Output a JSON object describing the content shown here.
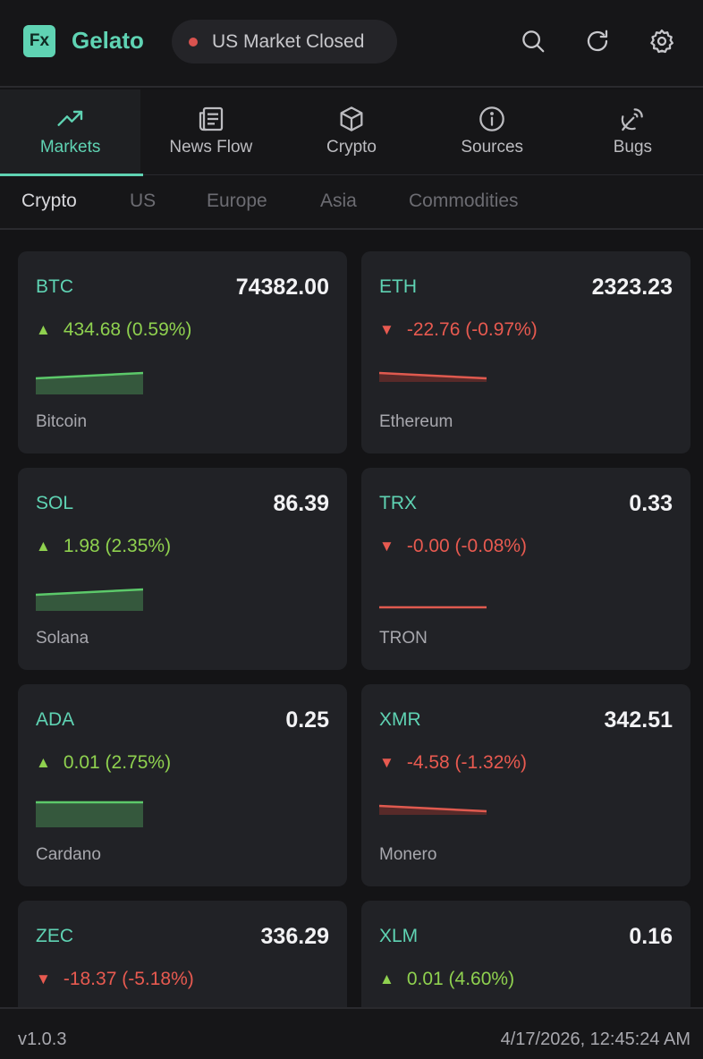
{
  "header": {
    "logo_text": "Fx",
    "app_title": "Gelato",
    "market_status": "US Market Closed",
    "market_status_color": "#d9534f",
    "accent_color": "#5fd3b3",
    "icons": [
      "search-icon",
      "refresh-icon",
      "settings-icon"
    ]
  },
  "tabs": [
    {
      "label": "Markets",
      "icon": "trending-up-icon",
      "active": true
    },
    {
      "label": "News Flow",
      "icon": "newspaper-icon",
      "active": false
    },
    {
      "label": "Crypto",
      "icon": "cube-icon",
      "active": false
    },
    {
      "label": "Sources",
      "icon": "info-icon",
      "active": false
    },
    {
      "label": "Bugs",
      "icon": "satellite-dish-icon",
      "active": false
    }
  ],
  "subtabs": [
    {
      "label": "Crypto",
      "active": true
    },
    {
      "label": "US",
      "active": false
    },
    {
      "label": "Europe",
      "active": false
    },
    {
      "label": "Asia",
      "active": false
    },
    {
      "label": "Commodities",
      "active": false
    }
  ],
  "colors": {
    "up": "#8fd14f",
    "down": "#e85a50"
  },
  "cards": [
    {
      "symbol": "BTC",
      "price": "74382.00",
      "change": "434.68 (0.59%)",
      "direction": "up",
      "name": "Bitcoin",
      "spark": [
        0.0,
        1.0
      ]
    },
    {
      "symbol": "ETH",
      "price": "2323.23",
      "change": "-22.76 (-0.97%)",
      "direction": "down",
      "name": "Ethereum",
      "spark": [
        1.0,
        0.0
      ]
    },
    {
      "symbol": "SOL",
      "price": "86.39",
      "change": "1.98 (2.35%)",
      "direction": "up",
      "name": "Solana",
      "spark": [
        0.0,
        1.0
      ]
    },
    {
      "symbol": "TRX",
      "price": "0.33",
      "change": "-0.00 (-0.08%)",
      "direction": "down",
      "name": "TRON",
      "spark": [
        0.5,
        0.5
      ]
    },
    {
      "symbol": "ADA",
      "price": "0.25",
      "change": "0.01 (2.75%)",
      "direction": "up",
      "name": "Cardano",
      "spark": [
        0.5,
        0.5
      ]
    },
    {
      "symbol": "XMR",
      "price": "342.51",
      "change": "-4.58 (-1.32%)",
      "direction": "down",
      "name": "Monero",
      "spark": [
        1.0,
        0.0
      ]
    },
    {
      "symbol": "ZEC",
      "price": "336.29",
      "change": "-18.37 (-5.18%)",
      "direction": "down",
      "name": "",
      "spark": [
        1.0,
        0.0
      ]
    },
    {
      "symbol": "XLM",
      "price": "0.16",
      "change": "0.01 (4.60%)",
      "direction": "up",
      "name": "",
      "spark": [
        0.0,
        1.0
      ]
    }
  ],
  "footer": {
    "version": "v1.0.3",
    "timestamp": "4/17/2026, 12:45:24 AM"
  }
}
